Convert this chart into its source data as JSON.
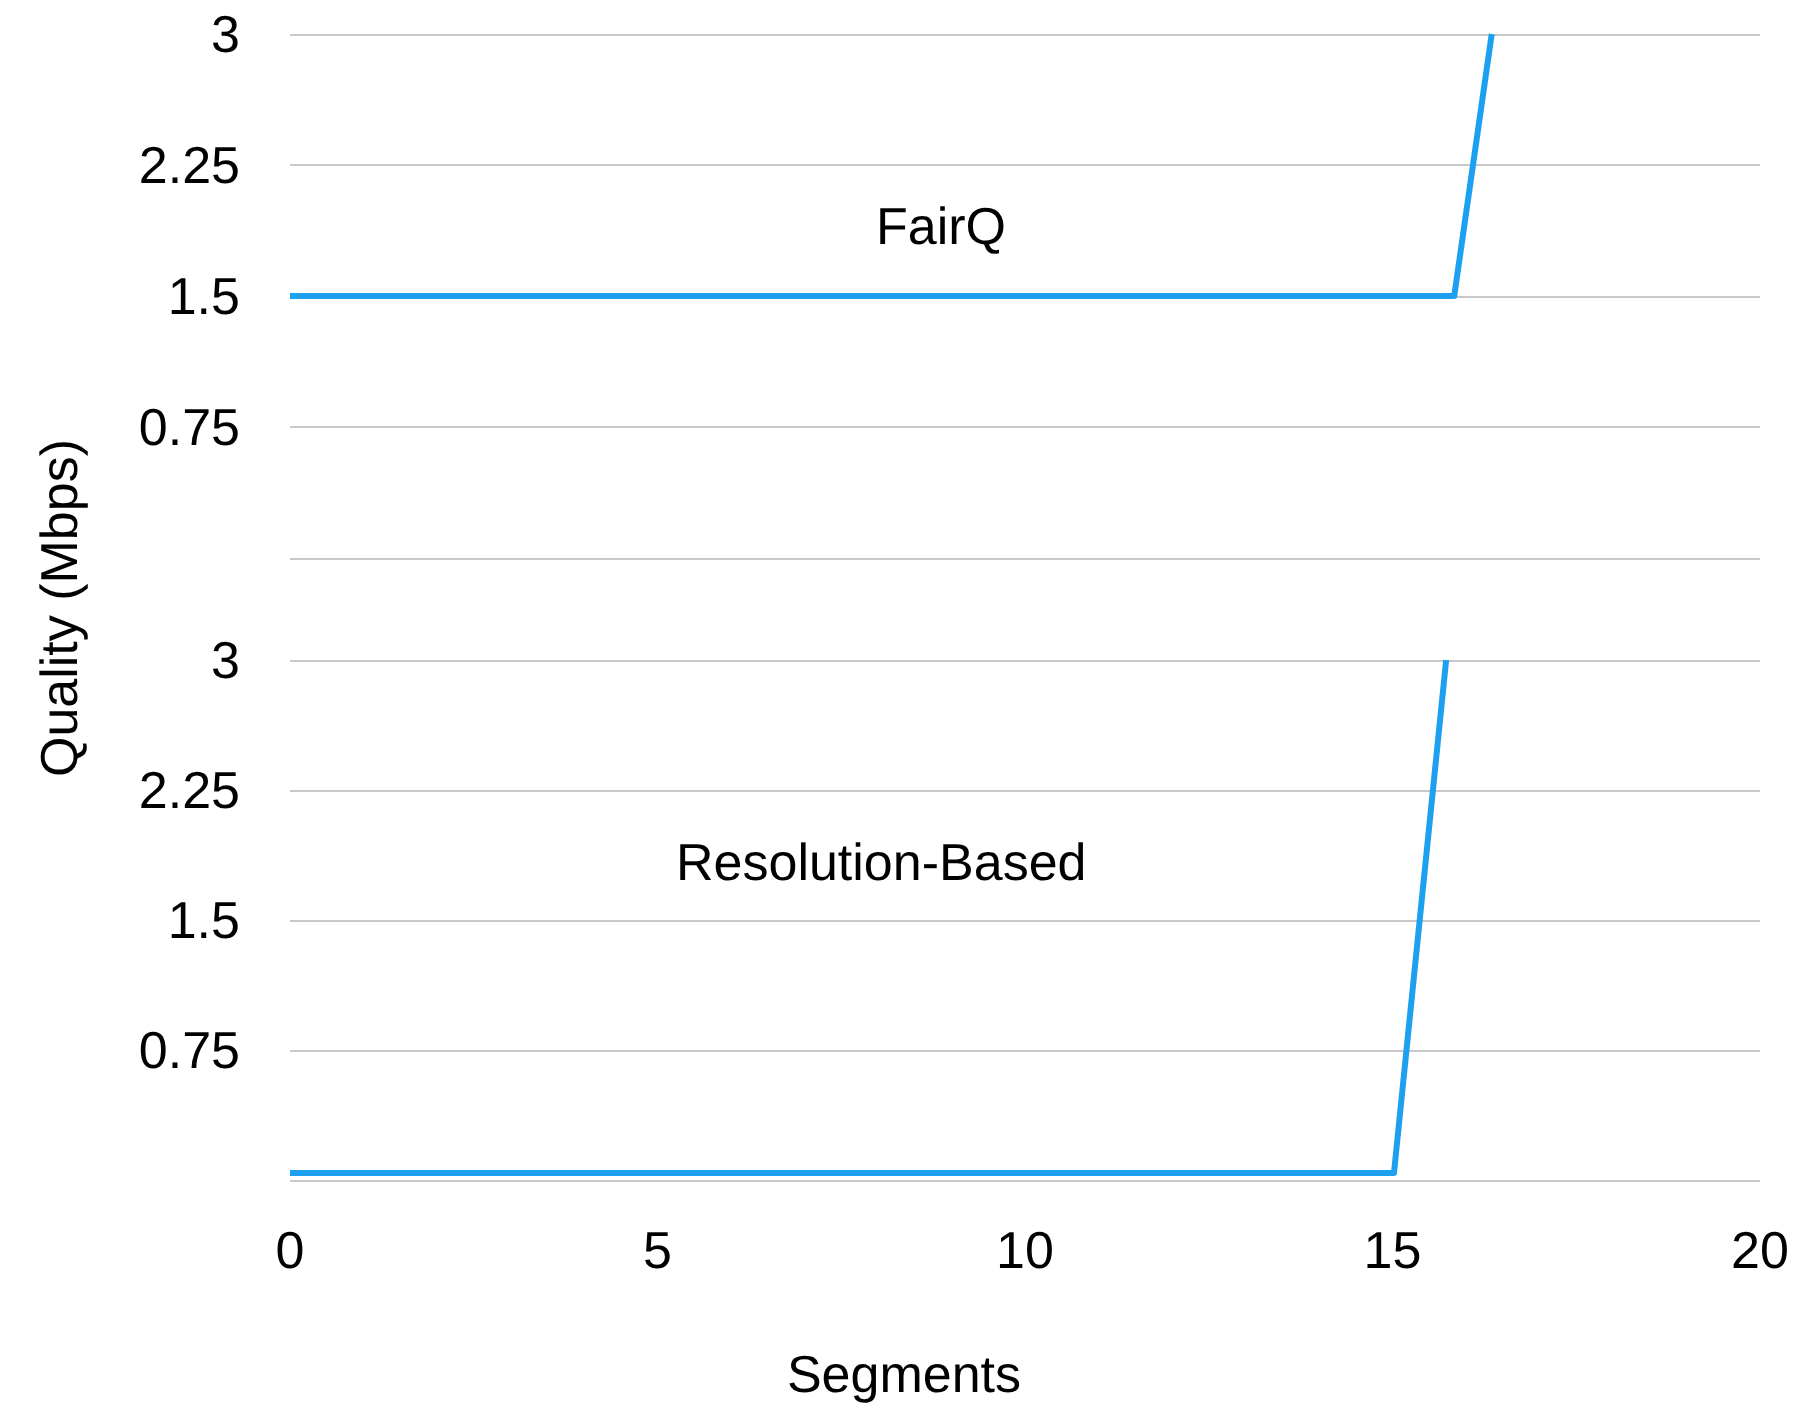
{
  "chart_data": [
    {
      "type": "line",
      "ylabel": "Quality (Mbps)",
      "xlim": [
        0,
        20
      ],
      "ylim": [
        0,
        3
      ],
      "yticks": [
        {
          "value": 0,
          "label": null
        },
        0.75,
        1.5,
        2.25,
        3
      ],
      "grid": "y",
      "tick_labels": "y",
      "marker": "none",
      "series": [
        {
          "name": "FairQ",
          "color": "#1ea0f0",
          "x": [
            0,
            15.84,
            16.35
          ],
          "values": [
            1.5,
            1.5,
            3
          ]
        }
      ]
    },
    {
      "type": "line",
      "xlabel": "Segments",
      "xlim": [
        0,
        20
      ],
      "xticks": [
        0,
        5,
        10,
        15,
        20
      ],
      "ylim": [
        0,
        3
      ],
      "yticks": [
        {
          "value": 0,
          "label": null
        },
        0.75,
        1.5,
        2.25,
        3
      ],
      "grid": "y",
      "marker": "none",
      "series": [
        {
          "name": "Resolution-Based",
          "color": "#1ea0f0",
          "x": [
            0,
            15.02,
            15.73
          ],
          "values": [
            0.04,
            0.04,
            3
          ]
        }
      ]
    }
  ]
}
